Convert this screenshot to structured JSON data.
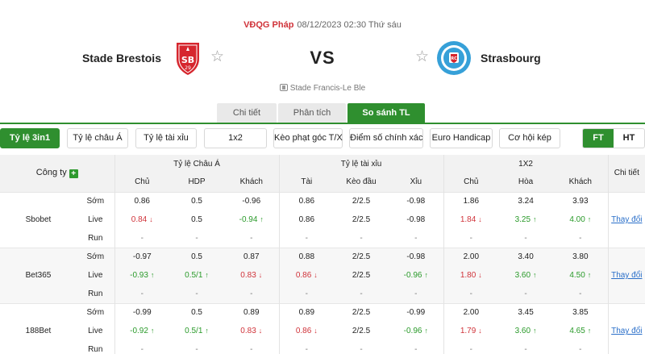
{
  "match": {
    "league": "VĐQG Pháp",
    "datetime": "08/12/2023 02:30 Thứ sáu",
    "home_team": "Stade Brestois",
    "away_team": "Strasbourg",
    "vs": "VS",
    "stadium": "Stade Francis-Le Ble"
  },
  "main_tabs": [
    "Chi tiết",
    "Phân tích",
    "So sánh TL"
  ],
  "filters": [
    "Tỷ lệ 3in1",
    "Tỷ lệ châu Á",
    "Tỷ lệ tài xỉu",
    "1x2",
    "Kèo phạt góc T/X",
    "Điểm số chính xác",
    "Euro Handicap",
    "Cơ hội kép"
  ],
  "period_toggle": [
    "FT",
    "HT"
  ],
  "table": {
    "company_header": "Công ty",
    "groups": [
      "Tỷ lệ Châu Á",
      "Tỷ lệ tài xỉu",
      "1X2"
    ],
    "change_header": "Chi tiết",
    "subheaders": [
      "Chủ",
      "HDP",
      "Khách",
      "Tài",
      "Kèo đầu",
      "Xỉu",
      "Chủ",
      "Hòa",
      "Khách"
    ],
    "row_types": [
      "Sớm",
      "Live",
      "Run"
    ],
    "change_link": "Thay đổi",
    "companies": [
      {
        "name": "Sbobet",
        "rows": [
          [
            "0.86",
            "0.5",
            "-0.96",
            "0.86",
            "2/2.5",
            "-0.98",
            "1.86",
            "3.24",
            "3.93"
          ],
          [
            "0.84",
            "0.5",
            "-0.94",
            "0.86",
            "2/2.5",
            "-0.98",
            "1.84",
            "3.25",
            "4.00"
          ],
          [
            "-",
            "-",
            "-",
            "-",
            "-",
            "-",
            "-",
            "-",
            "-"
          ]
        ],
        "live_dirs": [
          "down",
          "",
          "up",
          "",
          "",
          "",
          "down",
          "up",
          "up"
        ]
      },
      {
        "name": "Bet365",
        "rows": [
          [
            "-0.97",
            "0.5",
            "0.87",
            "0.88",
            "2/2.5",
            "-0.98",
            "2.00",
            "3.40",
            "3.80"
          ],
          [
            "-0.93",
            "0.5/1",
            "0.83",
            "0.86",
            "2/2.5",
            "-0.96",
            "1.80",
            "3.60",
            "4.50"
          ],
          [
            "-",
            "-",
            "-",
            "-",
            "-",
            "-",
            "-",
            "-",
            "-"
          ]
        ],
        "live_dirs": [
          "up",
          "up",
          "down",
          "down",
          "",
          "up",
          "down",
          "up",
          "up"
        ]
      },
      {
        "name": "188Bet",
        "rows": [
          [
            "-0.99",
            "0.5",
            "0.89",
            "0.89",
            "2/2.5",
            "-0.99",
            "2.00",
            "3.45",
            "3.85"
          ],
          [
            "-0.92",
            "0.5/1",
            "0.83",
            "0.86",
            "2/2.5",
            "-0.96",
            "1.79",
            "3.60",
            "4.65"
          ],
          [
            "-",
            "-",
            "-",
            "-",
            "-",
            "-",
            "-",
            "-",
            "-"
          ]
        ],
        "live_dirs": [
          "up",
          "up",
          "down",
          "down",
          "",
          "up",
          "down",
          "up",
          "up"
        ]
      }
    ]
  },
  "colors": {
    "accent_green": "#2f8f2f",
    "league_red": "#d0333a",
    "odds_up": "#2a9a2a",
    "odds_down": "#d0333a",
    "link_blue": "#2a6fc9",
    "brest_red": "#d6262e",
    "strasbourg_blue": "#36a0d8"
  },
  "icons": {
    "home_logo": "stade-brestois-crest",
    "away_logo": "strasbourg-crest",
    "favorite": "star-outline-icon",
    "stadium": "stadium-icon",
    "add_company": "plus-icon",
    "up": "arrow-up-icon",
    "down": "arrow-down-icon"
  }
}
